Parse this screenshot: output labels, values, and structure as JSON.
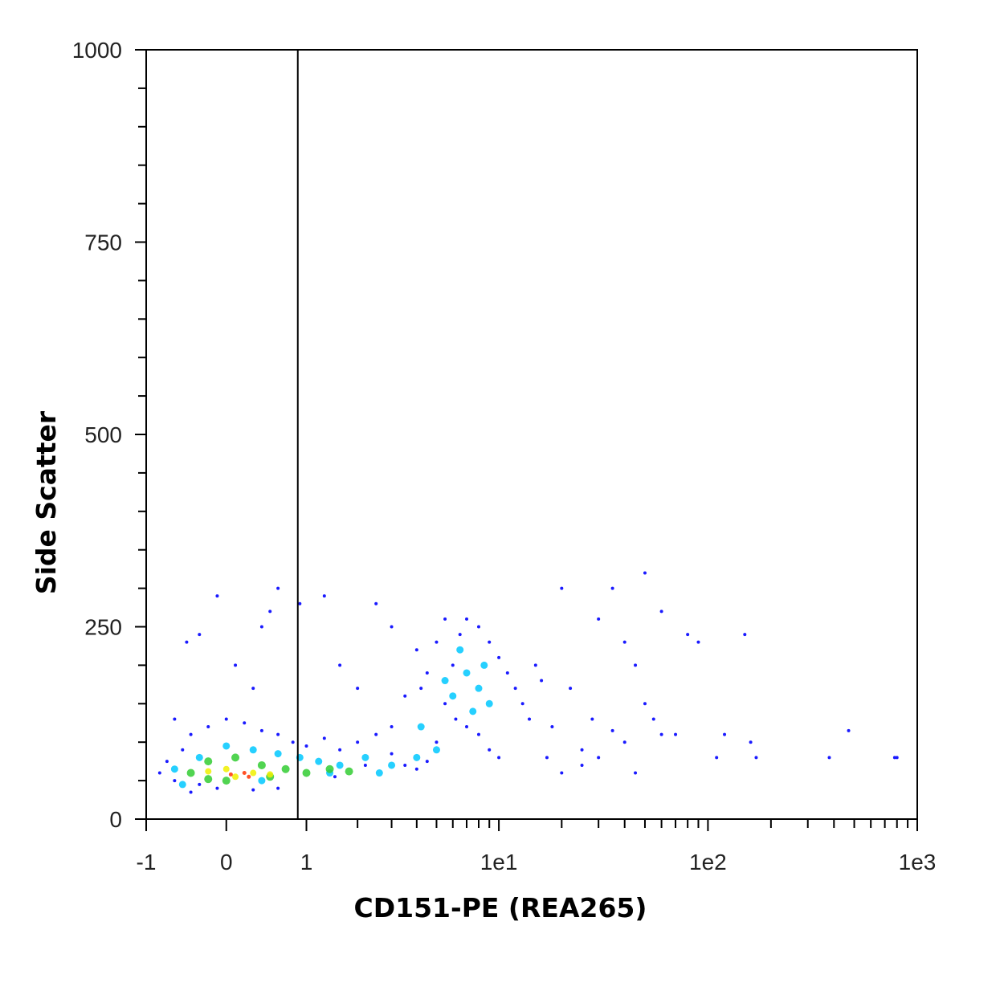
{
  "chart_data": {
    "type": "scatter",
    "x_label": "CD151-PE (REA265)",
    "y_label": "Side Scatter",
    "xscale": "asinh",
    "xlim": [
      -1,
      1000
    ],
    "xticks": [
      -1,
      0,
      1,
      {
        "value": 10,
        "label": "1e1"
      },
      {
        "value": 100,
        "label": "1e2"
      },
      {
        "value": 1000,
        "label": "1e3"
      }
    ],
    "xminorticks": [
      2,
      3,
      4,
      5,
      6,
      7,
      8,
      9,
      20,
      30,
      40,
      50,
      60,
      70,
      80,
      90,
      200,
      300,
      400,
      500,
      600,
      700,
      800,
      900
    ],
    "ylim": [
      0,
      1000
    ],
    "yticks": [
      0,
      250,
      500,
      750,
      1000
    ],
    "yminorticks": [
      50,
      100,
      150,
      200,
      300,
      350,
      400,
      450,
      550,
      600,
      650,
      700,
      800,
      850,
      900,
      950
    ],
    "gate_x": 0.87,
    "series": [
      {
        "color": "#1a1aff",
        "marker_size": 3,
        "x": [
          -0.8,
          -0.7,
          -0.6,
          -0.5,
          -0.4,
          -0.3,
          -0.2,
          0,
          0.2,
          0.4,
          0.6,
          0.8,
          1.0,
          1.3,
          1.6,
          2,
          2.5,
          3,
          3.5,
          4,
          4.5,
          5,
          5.5,
          6,
          6.5,
          7,
          8,
          9,
          10,
          11,
          12,
          13,
          14,
          15,
          16,
          5,
          5.5,
          4.5,
          4,
          3.5,
          4.2,
          6.2,
          7,
          8,
          9,
          10,
          3,
          2.2,
          1.5,
          0.6,
          0.3,
          -0.1,
          -0.4,
          0.5,
          0.6,
          0.4,
          -0.3,
          -0.1,
          0.9,
          1.3,
          2.5,
          20,
          35,
          50,
          60,
          30,
          40,
          80,
          90,
          150,
          45,
          50,
          55,
          60,
          40,
          30,
          35,
          70,
          25,
          120,
          160,
          110,
          170,
          380,
          470,
          800,
          780,
          20,
          25,
          45,
          -0.45,
          0.1,
          1.6,
          2,
          0.3,
          -0.6,
          3,
          18,
          22,
          28,
          17
        ],
        "values": [
          60,
          75,
          50,
          90,
          110,
          45,
          120,
          130,
          125,
          115,
          110,
          100,
          95,
          105,
          90,
          100,
          110,
          85,
          70,
          65,
          75,
          100,
          150,
          200,
          240,
          260,
          250,
          230,
          210,
          190,
          170,
          150,
          130,
          200,
          180,
          230,
          260,
          190,
          220,
          160,
          170,
          130,
          120,
          110,
          90,
          80,
          120,
          70,
          55,
          40,
          38,
          40,
          35,
          270,
          300,
          250,
          240,
          290,
          280,
          290,
          280,
          300,
          300,
          320,
          270,
          260,
          230,
          240,
          230,
          240,
          200,
          150,
          130,
          110,
          100,
          80,
          115,
          110,
          90,
          110,
          100,
          80,
          80,
          80,
          115,
          80,
          80,
          60,
          70,
          60,
          230,
          200,
          200,
          170,
          170,
          130,
          250,
          120,
          170,
          130,
          80
        ]
      },
      {
        "color": "#00c8ff",
        "marker_size": 8,
        "x": [
          -0.6,
          -0.3,
          0,
          0.3,
          0.6,
          0.9,
          1.2,
          1.6,
          2.2,
          3,
          4,
          5,
          6,
          7,
          8,
          6.5,
          5.5,
          8.5,
          9,
          -0.5,
          0.4,
          1.4,
          2.6,
          4.2,
          7.5
        ],
        "values": [
          65,
          80,
          95,
          90,
          85,
          80,
          75,
          70,
          80,
          70,
          80,
          90,
          160,
          190,
          170,
          220,
          180,
          200,
          150,
          45,
          50,
          60,
          60,
          120,
          140
        ]
      },
      {
        "color": "#33cc33",
        "marker_size": 9,
        "x": [
          -0.4,
          -0.2,
          0.1,
          0.4,
          0.7,
          1.0,
          1.4,
          1.8,
          0,
          0.5,
          -0.2
        ],
        "values": [
          60,
          75,
          80,
          70,
          65,
          60,
          65,
          62,
          50,
          55,
          52
        ]
      },
      {
        "color": "#f0f000",
        "marker_size": 7,
        "x": [
          -0.2,
          0,
          0.3,
          0.5,
          0.1
        ],
        "values": [
          62,
          65,
          60,
          58,
          55
        ]
      },
      {
        "color": "#ff3300",
        "marker_size": 4,
        "x": [
          0.05,
          0.2,
          0.25
        ],
        "values": [
          58,
          60,
          55
        ]
      }
    ]
  }
}
